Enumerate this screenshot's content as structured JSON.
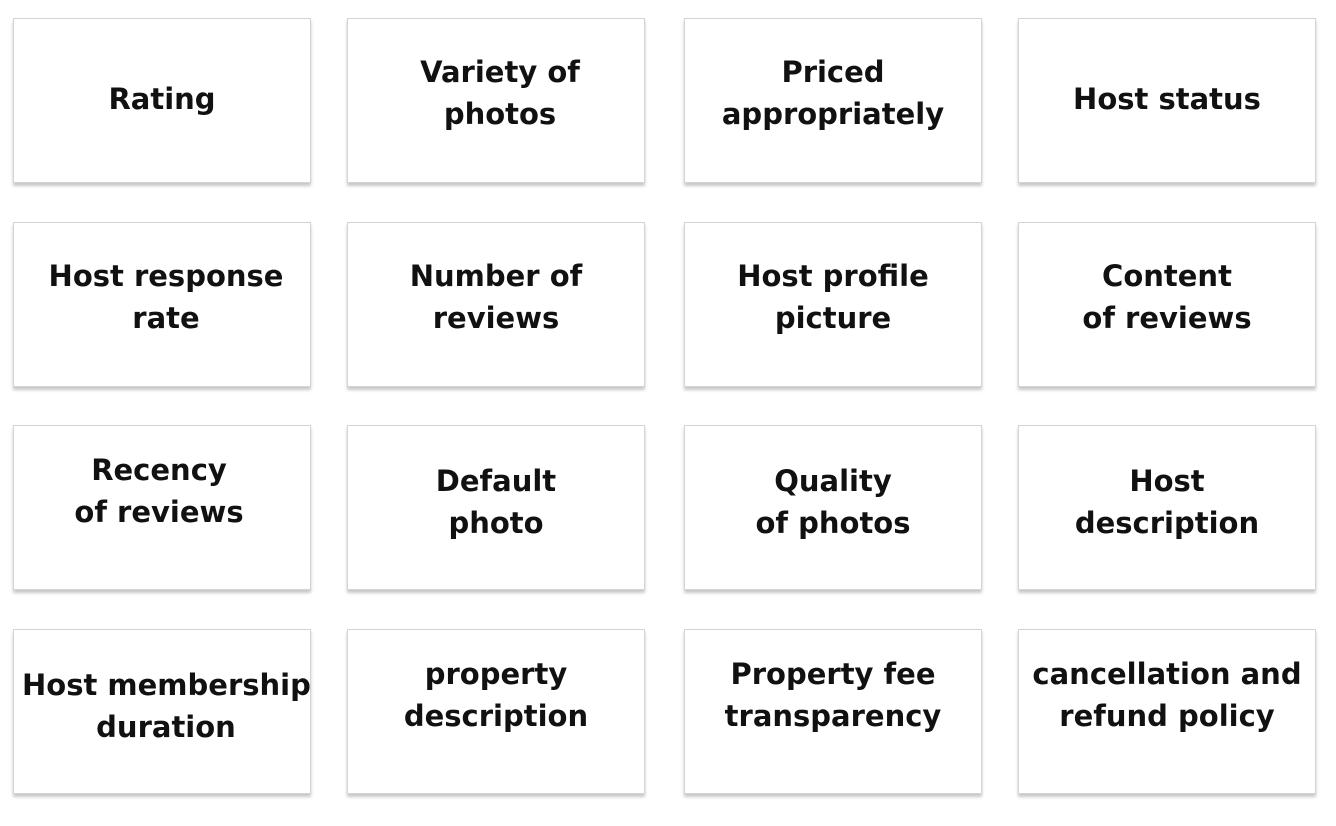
{
  "cards": [
    {
      "lines": [
        "Rating"
      ]
    },
    {
      "lines": [
        "Variety of",
        "photos"
      ]
    },
    {
      "lines": [
        "Priced",
        "appropriately"
      ]
    },
    {
      "lines": [
        "Host status"
      ]
    },
    {
      "lines": [
        "Host response",
        "rate"
      ]
    },
    {
      "lines": [
        "Number of",
        "reviews"
      ]
    },
    {
      "lines": [
        "Host profile",
        "picture"
      ]
    },
    {
      "lines": [
        "Content",
        "of reviews"
      ]
    },
    {
      "lines": [
        "Recency",
        "of reviews"
      ]
    },
    {
      "lines": [
        "Default",
        "photo"
      ]
    },
    {
      "lines": [
        "Quality",
        "of photos"
      ]
    },
    {
      "lines": [
        "Host",
        "description"
      ]
    },
    {
      "lines": [
        "Host membership",
        "duration"
      ]
    },
    {
      "lines": [
        "property",
        "description"
      ]
    },
    {
      "lines": [
        "Property fee",
        "transparency"
      ]
    },
    {
      "lines": [
        "cancellation and",
        "refund policy"
      ]
    }
  ]
}
